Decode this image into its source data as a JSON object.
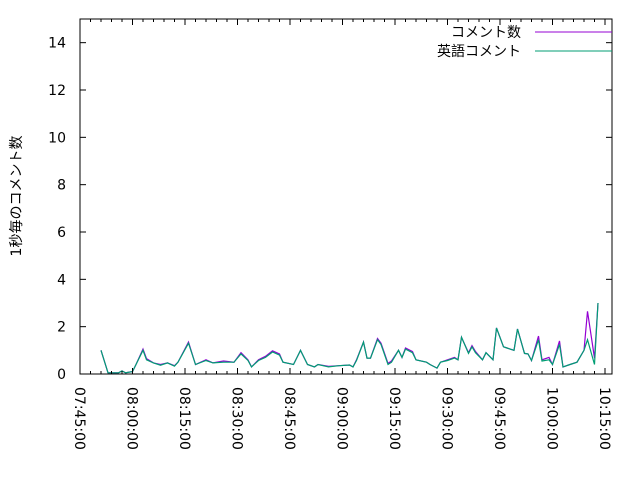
{
  "chart_data": {
    "type": "line",
    "title": "",
    "xlabel": "",
    "ylabel": "1秒毎のコメント数",
    "xlim": [
      "07:45",
      "10:17"
    ],
    "ylim": [
      0,
      15
    ],
    "yticks": [
      0,
      2,
      4,
      6,
      8,
      10,
      12,
      14
    ],
    "xticks": [
      "07:45:00",
      "08:00:00",
      "08:15:00",
      "08:30:00",
      "08:45:00",
      "09:00:00",
      "09:15:00",
      "09:30:00",
      "09:45:00",
      "10:00:00",
      "10:15:00"
    ],
    "grid": false,
    "legend_position": "top-right",
    "x": [
      "07:51",
      "07:53",
      "07:56",
      "07:57",
      "07:58",
      "08:00",
      "08:01",
      "08:03",
      "08:04",
      "08:06",
      "08:08",
      "08:10",
      "08:12",
      "08:13",
      "08:16",
      "08:18",
      "08:21",
      "08:23",
      "08:26",
      "08:29",
      "08:31",
      "08:33",
      "08:34",
      "08:36",
      "08:38",
      "08:40",
      "08:42",
      "08:43",
      "08:46",
      "08:48",
      "08:50",
      "08:52",
      "08:53",
      "08:56",
      "08:59",
      "09:02",
      "09:03",
      "09:04",
      "09:06",
      "09:07",
      "09:08",
      "09:10",
      "09:11",
      "09:13",
      "09:14",
      "09:16",
      "09:17",
      "09:18",
      "09:20",
      "09:21",
      "09:24",
      "09:25",
      "09:27",
      "09:28",
      "09:30",
      "09:32",
      "09:33",
      "09:34",
      "09:36",
      "09:37",
      "09:38",
      "09:40",
      "09:41",
      "09:43",
      "09:44",
      "09:46",
      "09:47",
      "09:49",
      "09:50",
      "09:52",
      "09:53",
      "09:54",
      "09:56",
      "09:57",
      "09:59",
      "10:00",
      "10:02",
      "10:03",
      "10:05",
      "10:07",
      "10:09",
      "10:10",
      "10:12",
      "10:13"
    ],
    "series": [
      {
        "name": "コメント数",
        "color": "#9400d3",
        "values": [
          1.0,
          0.05,
          0.05,
          0.13,
          0.05,
          0.1,
          0.4,
          1.05,
          0.65,
          0.47,
          0.4,
          0.47,
          0.35,
          0.5,
          1.35,
          0.4,
          0.6,
          0.47,
          0.55,
          0.5,
          0.9,
          0.6,
          0.3,
          0.6,
          0.75,
          0.98,
          0.85,
          0.5,
          0.4,
          1.0,
          0.4,
          0.3,
          0.4,
          0.32,
          0.35,
          0.38,
          0.3,
          0.6,
          1.35,
          0.67,
          0.67,
          1.5,
          1.3,
          0.45,
          0.55,
          1.0,
          0.7,
          1.1,
          0.95,
          0.6,
          0.5,
          0.4,
          0.25,
          0.5,
          0.6,
          0.7,
          0.6,
          1.55,
          0.9,
          1.2,
          0.95,
          0.6,
          0.9,
          0.6,
          1.95,
          1.15,
          1.1,
          1.0,
          1.9,
          0.87,
          0.85,
          0.57,
          1.6,
          0.6,
          0.7,
          0.4,
          1.4,
          0.3,
          0.4,
          0.5,
          1.0,
          2.65,
          0.67,
          3.0
        ]
      },
      {
        "name": "英語コメント",
        "color": "#009e73",
        "values": [
          1.0,
          0.05,
          0.05,
          0.13,
          0.05,
          0.1,
          0.4,
          1.0,
          0.6,
          0.47,
          0.37,
          0.47,
          0.33,
          0.5,
          1.3,
          0.4,
          0.57,
          0.47,
          0.5,
          0.5,
          0.85,
          0.57,
          0.3,
          0.57,
          0.7,
          0.93,
          0.8,
          0.5,
          0.4,
          1.0,
          0.4,
          0.3,
          0.4,
          0.3,
          0.35,
          0.38,
          0.3,
          0.57,
          1.35,
          0.67,
          0.67,
          1.45,
          1.25,
          0.4,
          0.5,
          1.0,
          0.7,
          1.05,
          0.9,
          0.6,
          0.5,
          0.4,
          0.25,
          0.5,
          0.57,
          0.67,
          0.6,
          1.55,
          0.87,
          1.15,
          0.9,
          0.6,
          0.9,
          0.6,
          1.95,
          1.15,
          1.1,
          1.0,
          1.9,
          0.87,
          0.85,
          0.57,
          1.45,
          0.55,
          0.6,
          0.4,
          1.25,
          0.3,
          0.4,
          0.5,
          1.0,
          1.45,
          0.4,
          3.0
        ]
      }
    ]
  }
}
